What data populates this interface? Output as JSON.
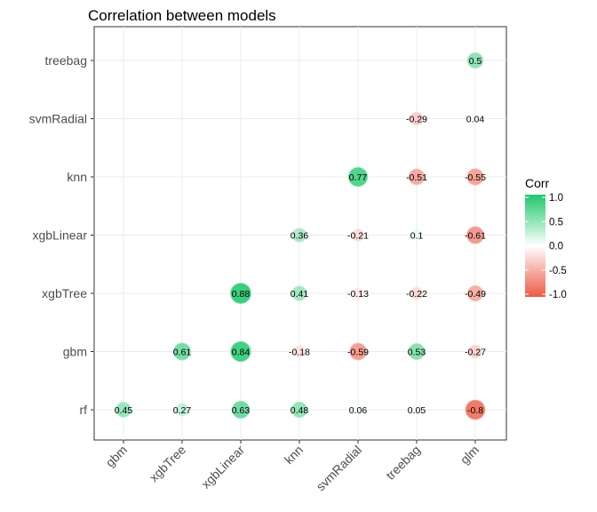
{
  "chart_data": {
    "type": "heatmap",
    "title": "Correlation between models",
    "x_categories": [
      "gbm",
      "xgbTree",
      "xgbLinear",
      "knn",
      "svmRadial",
      "treebag",
      "glm"
    ],
    "y_categories": [
      "rf",
      "gbm",
      "xgbTree",
      "xgbLinear",
      "knn",
      "svmRadial",
      "treebag"
    ],
    "cells": [
      {
        "x": "gbm",
        "y": "rf",
        "value": 0.45,
        "label": "0.45"
      },
      {
        "x": "xgbTree",
        "y": "rf",
        "value": 0.27,
        "label": "0.27"
      },
      {
        "x": "xgbLinear",
        "y": "rf",
        "value": 0.63,
        "label": "0.63"
      },
      {
        "x": "knn",
        "y": "rf",
        "value": 0.48,
        "label": "0.48"
      },
      {
        "x": "svmRadial",
        "y": "rf",
        "value": 0.06,
        "label": "0.06"
      },
      {
        "x": "treebag",
        "y": "rf",
        "value": 0.05,
        "label": "0.05"
      },
      {
        "x": "glm",
        "y": "rf",
        "value": -0.8,
        "label": "-0.8"
      },
      {
        "x": "xgbTree",
        "y": "gbm",
        "value": 0.61,
        "label": "0.61"
      },
      {
        "x": "xgbLinear",
        "y": "gbm",
        "value": 0.84,
        "label": "0.84"
      },
      {
        "x": "knn",
        "y": "gbm",
        "value": -0.18,
        "label": "-0.18"
      },
      {
        "x": "svmRadial",
        "y": "gbm",
        "value": -0.59,
        "label": "-0.59"
      },
      {
        "x": "treebag",
        "y": "gbm",
        "value": 0.53,
        "label": "0.53"
      },
      {
        "x": "glm",
        "y": "gbm",
        "value": -0.27,
        "label": "-0.27"
      },
      {
        "x": "xgbLinear",
        "y": "xgbTree",
        "value": 0.88,
        "label": "0.88"
      },
      {
        "x": "knn",
        "y": "xgbTree",
        "value": 0.41,
        "label": "0.41"
      },
      {
        "x": "svmRadial",
        "y": "xgbTree",
        "value": -0.13,
        "label": "-0.13"
      },
      {
        "x": "treebag",
        "y": "xgbTree",
        "value": -0.22,
        "label": "-0.22"
      },
      {
        "x": "glm",
        "y": "xgbTree",
        "value": -0.49,
        "label": "-0.49"
      },
      {
        "x": "knn",
        "y": "xgbLinear",
        "value": 0.36,
        "label": "0.36"
      },
      {
        "x": "svmRadial",
        "y": "xgbLinear",
        "value": -0.21,
        "label": "-0.21"
      },
      {
        "x": "treebag",
        "y": "xgbLinear",
        "value": 0.1,
        "label": "0.1"
      },
      {
        "x": "glm",
        "y": "xgbLinear",
        "value": -0.61,
        "label": "-0.61"
      },
      {
        "x": "svmRadial",
        "y": "knn",
        "value": 0.77,
        "label": "0.77"
      },
      {
        "x": "treebag",
        "y": "knn",
        "value": -0.51,
        "label": "-0.51"
      },
      {
        "x": "glm",
        "y": "knn",
        "value": -0.55,
        "label": "-0.55"
      },
      {
        "x": "treebag",
        "y": "svmRadial",
        "value": -0.29,
        "label": "-0.29"
      },
      {
        "x": "glm",
        "y": "svmRadial",
        "value": 0.04,
        "label": "0.04"
      },
      {
        "x": "glm",
        "y": "treebag",
        "value": 0.5,
        "label": "0.5"
      }
    ],
    "legend": {
      "title": "Corr",
      "ticks": [
        "1.0",
        "0.5",
        "0.0",
        "-0.5",
        "-1.0"
      ],
      "tick_values": [
        1.0,
        0.5,
        0.0,
        -0.5,
        -1.0
      ],
      "range": [
        -1,
        1
      ],
      "placement": "right"
    },
    "colors": {
      "high": "#1ec86a",
      "mid": "#ffffff",
      "low": "#ee5a45",
      "panel_border": "#333333",
      "grid": "#ebebeb",
      "tick_text": "#4d4d4d"
    },
    "grid": true
  }
}
